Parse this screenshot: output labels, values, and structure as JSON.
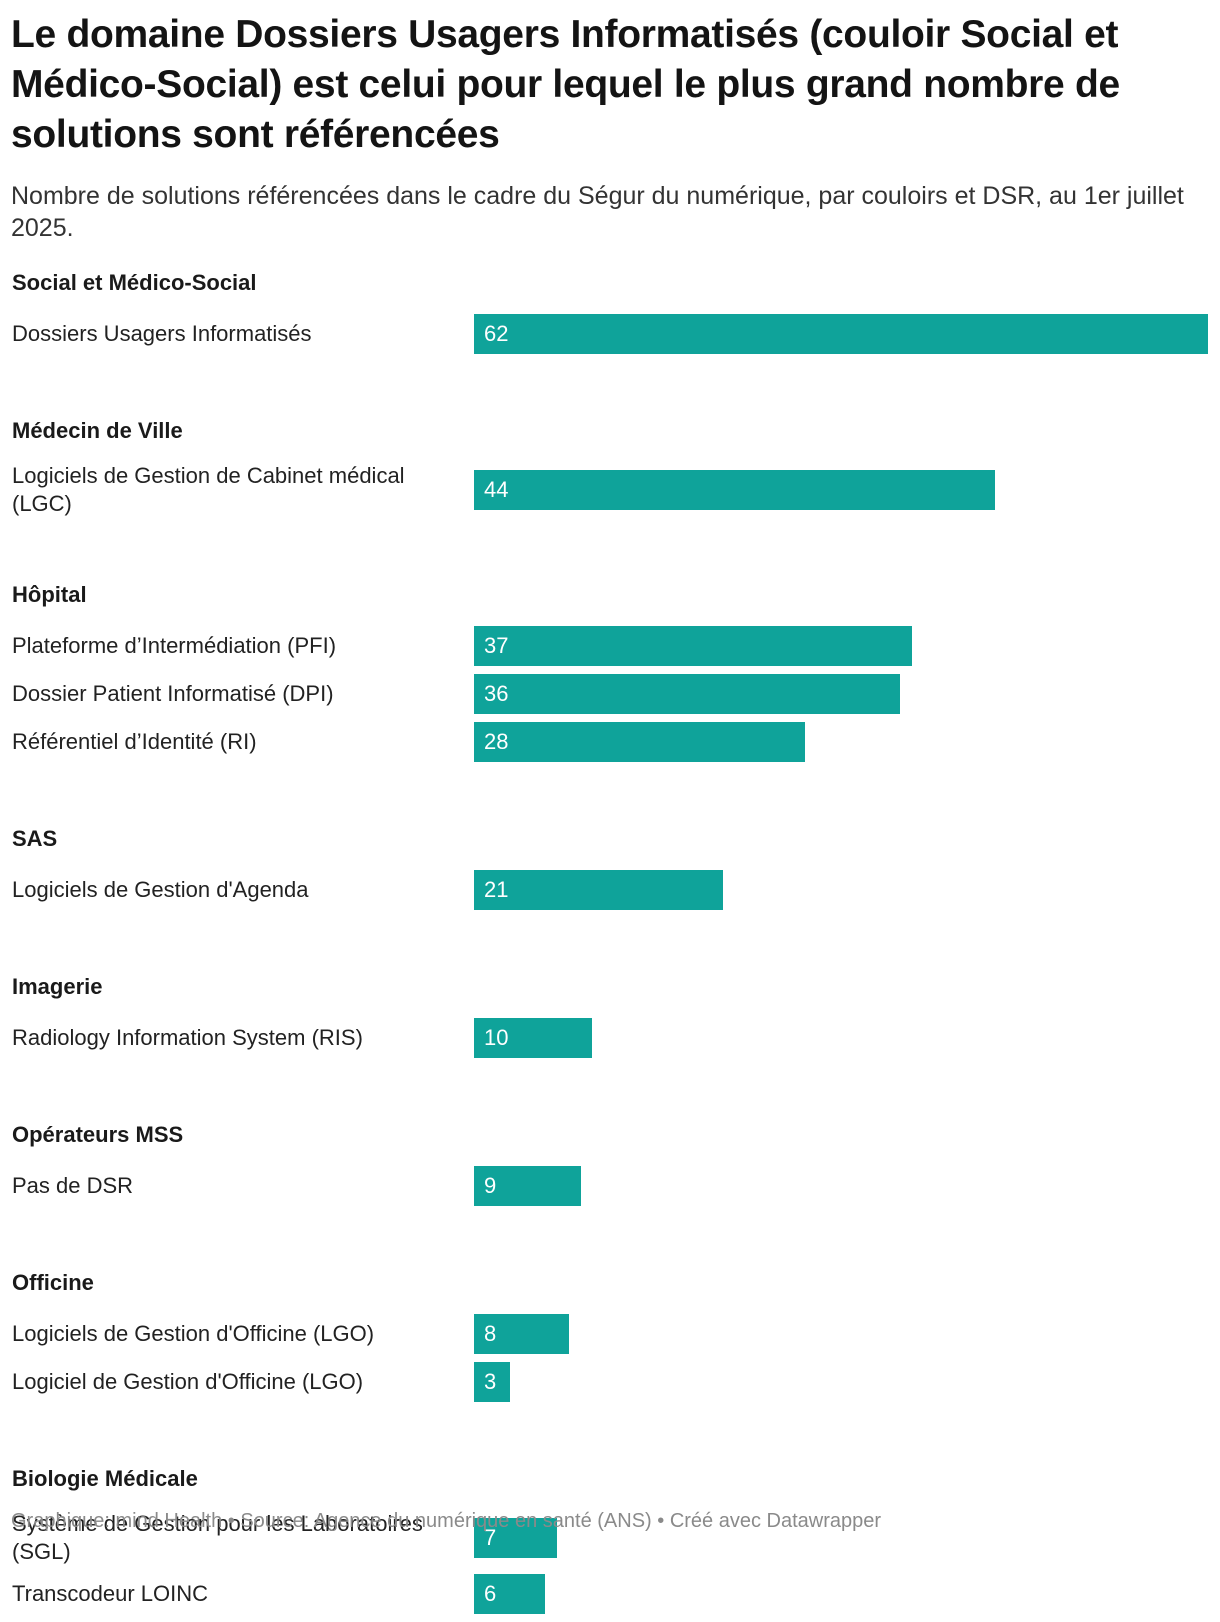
{
  "title": "Le domaine Dossiers Usagers Informatisés (couloir Social et Médico-Social) est celui pour lequel le plus grand nombre de solutions sont référencées",
  "subtitle": "Nombre de solutions référencées dans le cadre du Ségur du numérique, par couloirs et DSR, au 1er juillet 2025.",
  "footer": "Graphique: mind Health • Source: Agence du numérique en santé (ANS) • Créé avec Datawrapper",
  "colors": {
    "bar": "#0fa39a",
    "value_text": "#ffffff"
  },
  "chart_data": {
    "type": "bar",
    "orientation": "horizontal",
    "xlim": [
      0,
      62
    ],
    "groups": [
      {
        "name": "Social et Médico-Social",
        "rows": [
          {
            "label": "Dossiers Usagers Informatisés",
            "value": 62
          }
        ]
      },
      {
        "name": "Médecin de Ville",
        "rows": [
          {
            "label": "Logiciels de Gestion de Cabinet médical (LGC)",
            "value": 44
          }
        ]
      },
      {
        "name": "Hôpital",
        "rows": [
          {
            "label": "Plateforme d’Intermédiation (PFI)",
            "value": 37
          },
          {
            "label": "Dossier Patient Informatisé (DPI)",
            "value": 36
          },
          {
            "label": "Référentiel d’Identité (RI)",
            "value": 28
          }
        ]
      },
      {
        "name": "SAS",
        "rows": [
          {
            "label": "Logiciels de Gestion d'Agenda",
            "value": 21
          }
        ]
      },
      {
        "name": "Imagerie",
        "rows": [
          {
            "label": "Radiology Information System (RIS)",
            "value": 10
          }
        ]
      },
      {
        "name": "Opérateurs MSS",
        "rows": [
          {
            "label": "Pas de DSR",
            "value": 9
          }
        ]
      },
      {
        "name": "Officine",
        "rows": [
          {
            "label": "Logiciels de Gestion d'Officine (LGO)",
            "value": 8
          },
          {
            "label": "Logiciel de Gestion d'Officine (LGO)",
            "value": 3
          }
        ]
      },
      {
        "name": "Biologie Médicale",
        "rows": [
          {
            "label": "Système de Gestion pour les Laboratoires (SGL)",
            "value": 7
          },
          {
            "label": "Transcodeur LOINC",
            "value": 6
          }
        ]
      }
    ]
  }
}
